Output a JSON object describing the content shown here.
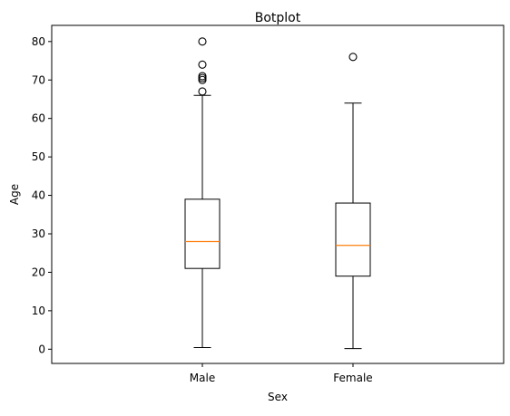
{
  "chart_data": {
    "type": "boxplot",
    "title": "Botplot",
    "xlabel": "Sex",
    "ylabel": "Age",
    "ylim": [
      -3.7,
      84.2
    ],
    "yticks": [
      0,
      10,
      20,
      30,
      40,
      50,
      60,
      70,
      80
    ],
    "grid": false,
    "categories": [
      "Male",
      "Female"
    ],
    "boxes": [
      {
        "category": "Male",
        "whisker_low": 0.42,
        "q1": 21,
        "median": 28,
        "q3": 39,
        "whisker_high": 66,
        "outliers": [
          67,
          70,
          70.5,
          71,
          74,
          80
        ]
      },
      {
        "category": "Female",
        "whisker_low": 0.17,
        "q1": 19,
        "median": 27,
        "q3": 38,
        "whisker_high": 64,
        "outliers": [
          76
        ]
      }
    ],
    "colors": {
      "box": "#000000",
      "median": "#ff7f0e",
      "outlier": "#000000"
    }
  }
}
